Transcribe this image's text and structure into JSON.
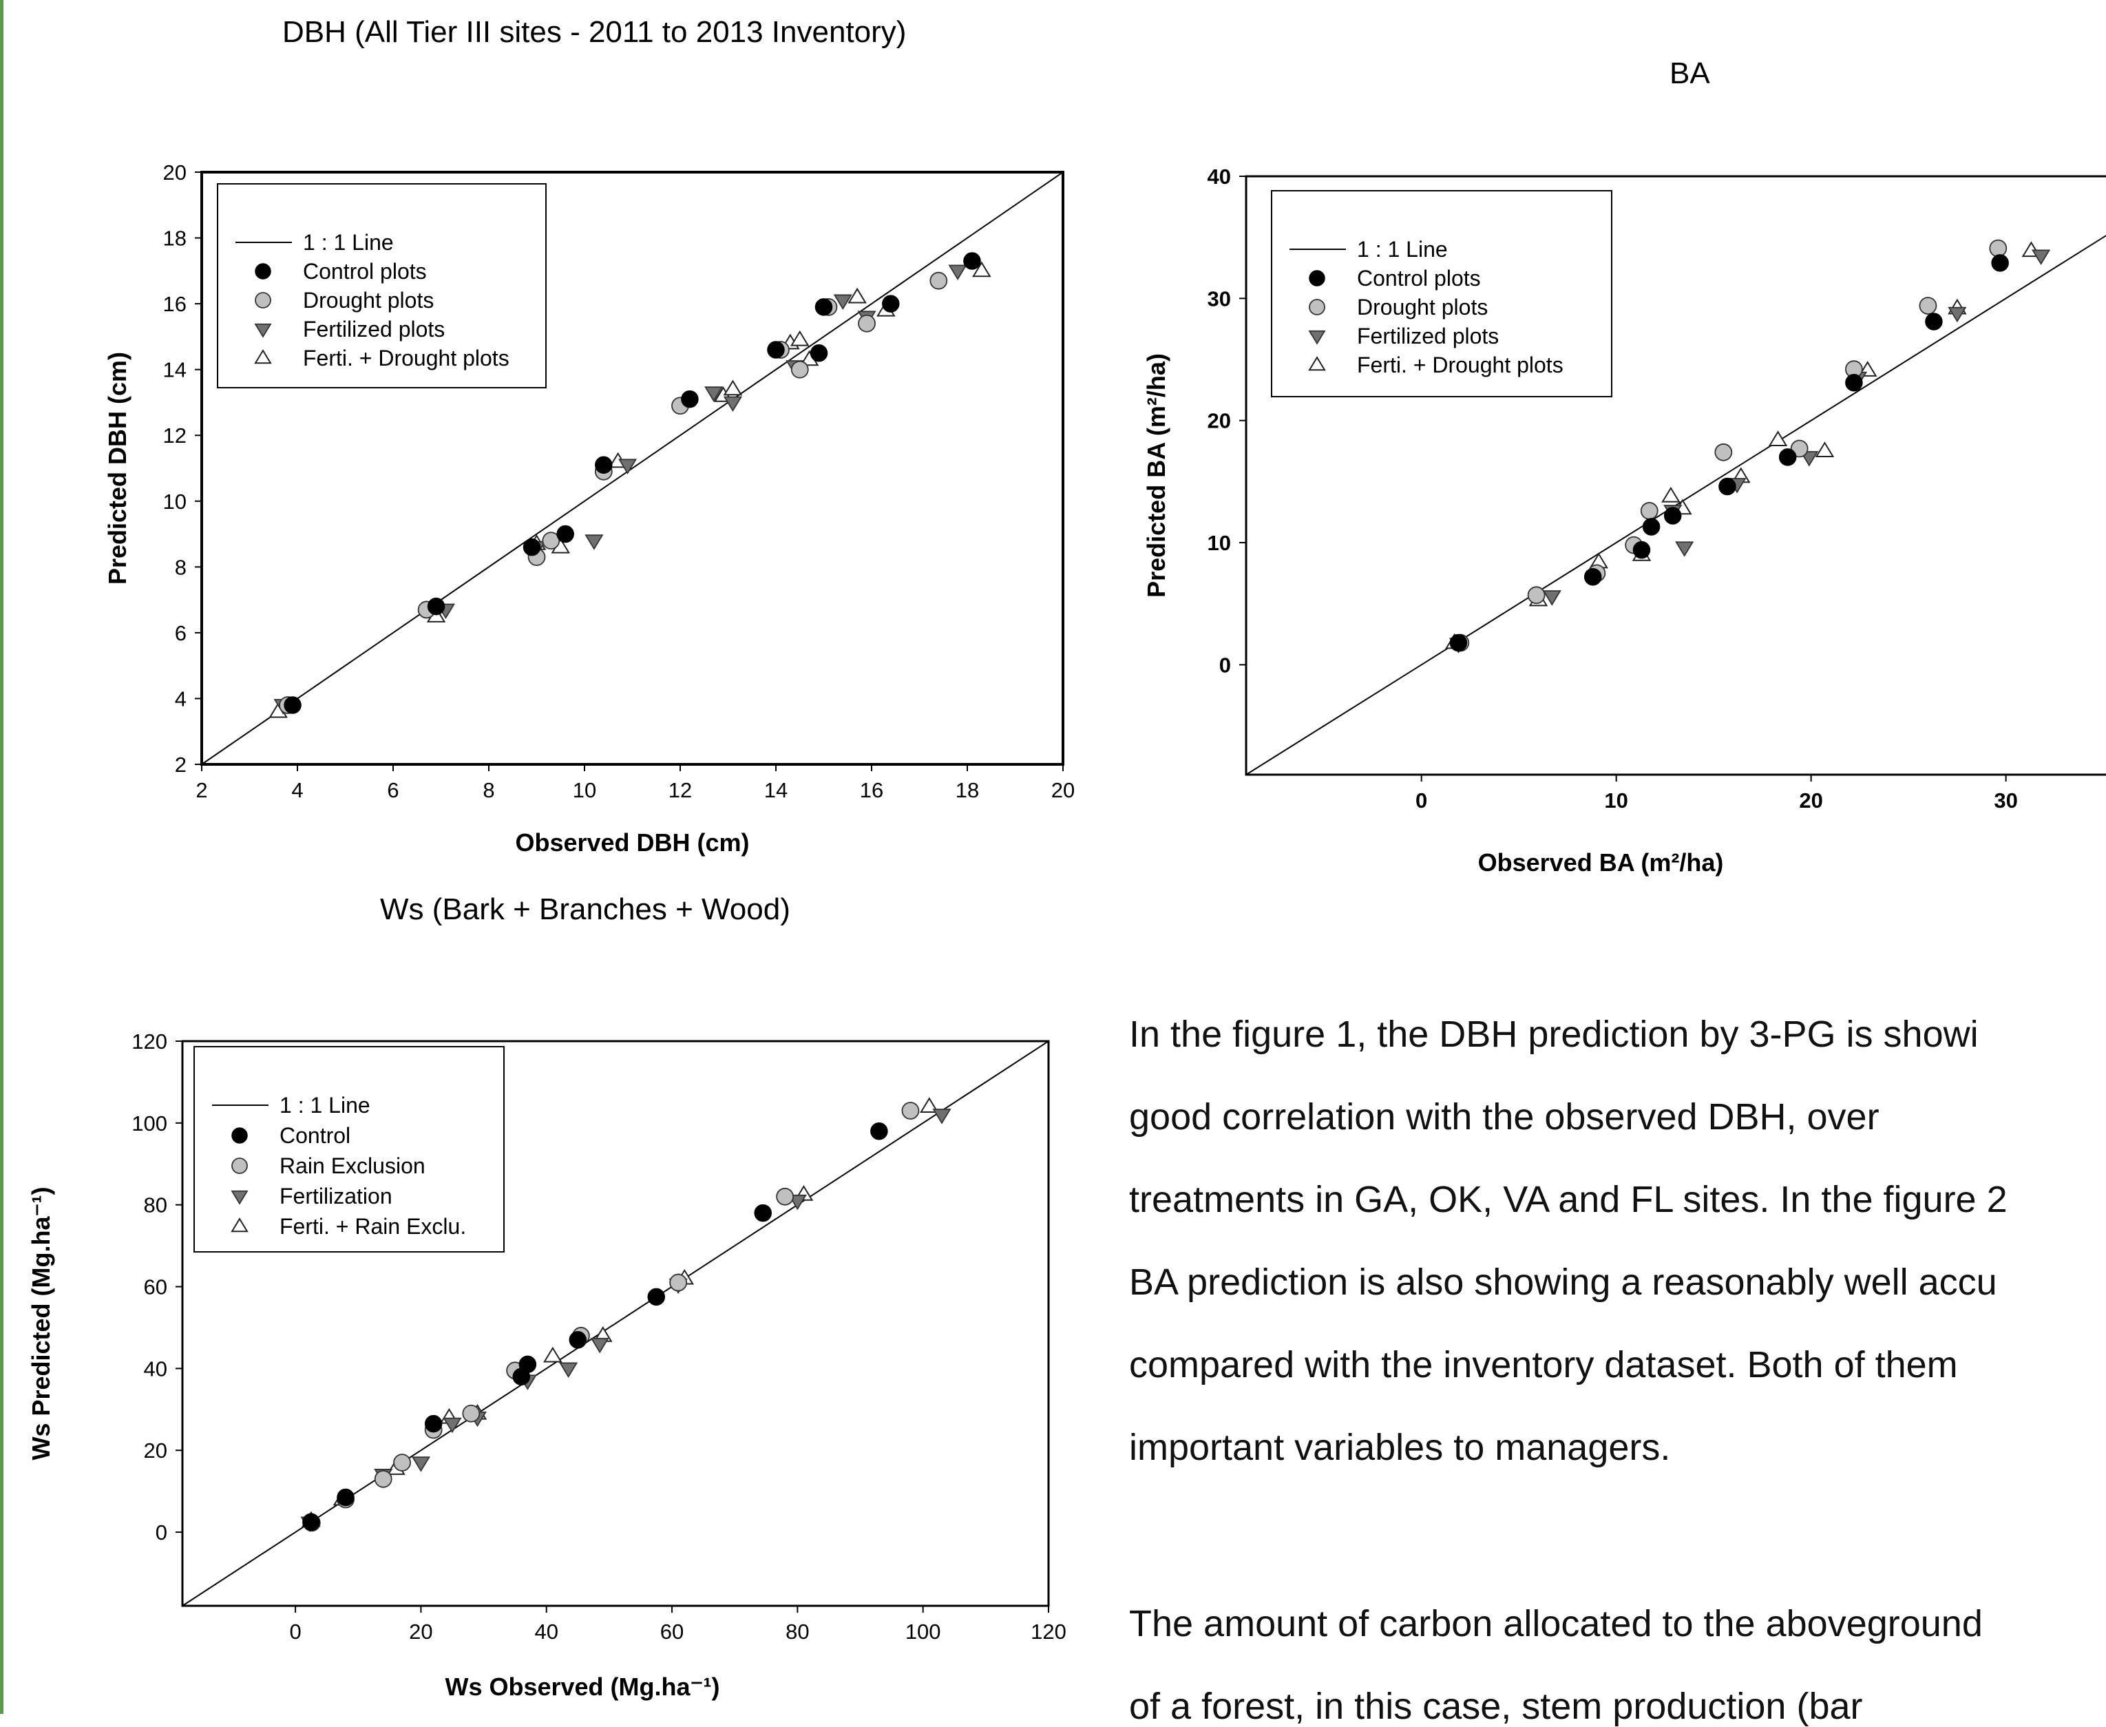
{
  "chart_data": [
    {
      "id": "dbh",
      "type": "scatter",
      "title": "DBH (All Tier III sites - 2011 to 2013 Inventory)",
      "xlabel": "Observed DBH (cm)",
      "ylabel": "Predicted DBH (cm)",
      "xlim": [
        2,
        20
      ],
      "ylim": [
        2,
        20
      ],
      "xticks": [
        "2",
        "4",
        "6",
        "8",
        "10",
        "12",
        "14",
        "16",
        "18",
        "20"
      ],
      "yticks": [
        "2",
        "4",
        "6",
        "8",
        "10",
        "12",
        "14",
        "16",
        "18",
        "20"
      ],
      "grid": false,
      "legend_position": "top-left",
      "legend": [
        "1 : 1 Line",
        "Control plots",
        "Drought plots",
        "Fertilized plots",
        "Ferti. + Drought plots"
      ],
      "series": [
        {
          "name": "Control plots",
          "marker": "filled-circle",
          "points": [
            [
              3.9,
              3.8
            ],
            [
              6.9,
              6.8
            ],
            [
              8.9,
              8.6
            ],
            [
              9.6,
              9.0
            ],
            [
              10.4,
              11.1
            ],
            [
              12.2,
              13.1
            ],
            [
              14.0,
              14.6
            ],
            [
              14.9,
              14.5
            ],
            [
              15.0,
              15.9
            ],
            [
              16.4,
              16.0
            ],
            [
              18.1,
              17.3
            ]
          ]
        },
        {
          "name": "Drought plots",
          "marker": "gray-circle",
          "points": [
            [
              3.8,
              3.8
            ],
            [
              6.7,
              6.7
            ],
            [
              9.0,
              8.3
            ],
            [
              9.3,
              8.8
            ],
            [
              10.4,
              10.9
            ],
            [
              12.0,
              12.9
            ],
            [
              14.1,
              14.6
            ],
            [
              14.5,
              14.0
            ],
            [
              15.1,
              15.9
            ],
            [
              15.9,
              15.4
            ],
            [
              17.4,
              16.7
            ]
          ]
        },
        {
          "name": "Fertilized plots",
          "marker": "triangle-down",
          "points": [
            [
              3.7,
              3.8
            ],
            [
              7.1,
              6.7
            ],
            [
              9.0,
              8.6
            ],
            [
              10.2,
              8.8
            ],
            [
              10.9,
              11.1
            ],
            [
              12.7,
              13.3
            ],
            [
              13.1,
              13.0
            ],
            [
              14.4,
              14.1
            ],
            [
              15.4,
              16.1
            ],
            [
              15.9,
              15.6
            ],
            [
              17.8,
              17.0
            ]
          ]
        },
        {
          "name": "Ferti. + Drought plots",
          "marker": "open-triangle",
          "points": [
            [
              3.6,
              3.6
            ],
            [
              6.9,
              6.5
            ],
            [
              9.0,
              8.7
            ],
            [
              9.5,
              8.6
            ],
            [
              10.7,
              11.2
            ],
            [
              12.9,
              13.2
            ],
            [
              13.1,
              13.4
            ],
            [
              14.3,
              14.8
            ],
            [
              14.5,
              14.9
            ],
            [
              14.7,
              14.3
            ],
            [
              15.7,
              16.2
            ],
            [
              16.3,
              15.8
            ],
            [
              18.3,
              17.0
            ]
          ]
        }
      ]
    },
    {
      "id": "ba",
      "type": "scatter",
      "title": "BA",
      "xlabel": "Observed BA (m²/ha)",
      "ylabel": "Predicted BA (m²/ha)",
      "xlim": [
        -9,
        38
      ],
      "ylim": [
        -9,
        40
      ],
      "xticks": [
        "0",
        "10",
        "20",
        "30"
      ],
      "yticks": [
        "0",
        "10",
        "20",
        "30",
        "40"
      ],
      "grid": false,
      "legend_position": "top-left",
      "legend": [
        "1 : 1 Line",
        "Control plots",
        "Drought plots",
        "Fertilized plots",
        "Ferti. + Drought plots"
      ],
      "series": [
        {
          "name": "Control plots",
          "marker": "filled-circle",
          "points": [
            [
              1.9,
              1.8
            ],
            [
              8.8,
              7.2
            ],
            [
              11.3,
              9.4
            ],
            [
              11.8,
              11.3
            ],
            [
              12.9,
              12.2
            ],
            [
              15.7,
              14.6
            ],
            [
              18.8,
              17.0
            ],
            [
              22.2,
              23.1
            ],
            [
              26.3,
              28.1
            ],
            [
              29.7,
              32.9
            ]
          ]
        },
        {
          "name": "Drought plots",
          "marker": "gray-circle",
          "points": [
            [
              2.0,
              1.8
            ],
            [
              5.9,
              5.7
            ],
            [
              9.0,
              7.5
            ],
            [
              10.9,
              9.8
            ],
            [
              11.7,
              12.6
            ],
            [
              15.5,
              17.4
            ],
            [
              19.4,
              17.7
            ],
            [
              22.2,
              24.2
            ],
            [
              26.0,
              29.4
            ],
            [
              29.6,
              34.1
            ]
          ]
        },
        {
          "name": "Fertilized plots",
          "marker": "triangle-down",
          "points": [
            [
              1.9,
              1.7
            ],
            [
              6.7,
              5.6
            ],
            [
              12.9,
              12.6
            ],
            [
              13.5,
              9.6
            ],
            [
              16.2,
              14.8
            ],
            [
              19.9,
              17.0
            ],
            [
              22.4,
              23.5
            ],
            [
              27.5,
              28.8
            ],
            [
              31.8,
              33.5
            ]
          ]
        },
        {
          "name": "Ferti. + Drought plots",
          "marker": "open-triangle",
          "points": [
            [
              1.7,
              1.8
            ],
            [
              6.0,
              5.3
            ],
            [
              9.1,
              8.4
            ],
            [
              11.3,
              9.0
            ],
            [
              12.8,
              13.8
            ],
            [
              13.4,
              12.8
            ],
            [
              16.4,
              15.4
            ],
            [
              18.3,
              18.4
            ],
            [
              20.7,
              17.5
            ],
            [
              22.9,
              24.1
            ],
            [
              27.5,
              29.2
            ],
            [
              31.3,
              33.9
            ]
          ]
        }
      ]
    },
    {
      "id": "ws",
      "type": "scatter",
      "title": "Ws (Bark + Branches + Wood)",
      "xlabel": "Ws  Observed (Mg.ha⁻¹)",
      "ylabel": "Ws Predicted  (Mg.ha⁻¹)",
      "xlim": [
        -18,
        120
      ],
      "ylim": [
        -18,
        120
      ],
      "xticks": [
        "0",
        "20",
        "40",
        "60",
        "80",
        "100",
        "120"
      ],
      "yticks": [
        "0",
        "20",
        "40",
        "60",
        "80",
        "100",
        "120"
      ],
      "grid": false,
      "legend_position": "top-left",
      "legend": [
        "1 : 1 Line",
        "Control",
        "Rain Exclusion",
        "Fertilization",
        "Ferti. + Rain Exclu."
      ],
      "series": [
        {
          "name": "Control",
          "marker": "filled-circle",
          "points": [
            [
              2.5,
              2.5
            ],
            [
              8,
              8.5
            ],
            [
              22,
              26.5
            ],
            [
              36,
              38
            ],
            [
              37,
              41
            ],
            [
              45,
              47
            ],
            [
              57.5,
              57.5
            ],
            [
              74.5,
              78
            ],
            [
              93,
              98
            ]
          ]
        },
        {
          "name": "Rain Exclusion",
          "marker": "gray-circle",
          "points": [
            [
              2.6,
              2.3
            ],
            [
              8,
              8
            ],
            [
              14,
              13
            ],
            [
              17,
              17
            ],
            [
              22,
              25
            ],
            [
              28,
              29
            ],
            [
              35,
              39.5
            ],
            [
              45.5,
              48
            ],
            [
              61,
              61
            ],
            [
              78,
              82
            ],
            [
              98,
              103
            ]
          ]
        },
        {
          "name": "Fertilization",
          "marker": "triangle-down",
          "points": [
            [
              2.3,
              2.3
            ],
            [
              14,
              14
            ],
            [
              20,
              17
            ],
            [
              25,
              26.5
            ],
            [
              29,
              28
            ],
            [
              37,
              37
            ],
            [
              43.5,
              40
            ],
            [
              48.5,
              46
            ],
            [
              61,
              60.5
            ],
            [
              80,
              81
            ],
            [
              103,
              102
            ]
          ]
        },
        {
          "name": "Ferti. + Rain Exclu.",
          "marker": "open-triangle",
          "points": [
            [
              2.5,
              2.8
            ],
            [
              7.5,
              8
            ],
            [
              16,
              15.5
            ],
            [
              24.5,
              28
            ],
            [
              29,
              29
            ],
            [
              41,
              43
            ],
            [
              49,
              48
            ],
            [
              62,
              62
            ],
            [
              81,
              82.5
            ],
            [
              101,
              104
            ]
          ]
        }
      ]
    }
  ],
  "body_text": {
    "paragraph1": [
      "In the figure 1, the DBH prediction by 3-PG is showi",
      "good  correlation  with  the  observed  DBH,  over",
      "treatments in GA, OK, VA and FL sites. In the figure 2",
      "BA prediction is also showing a reasonably well accu",
      "compared with the inventory dataset. Both of them",
      "important variables to managers."
    ],
    "paragraph2": [
      "The amount of carbon allocated to the aboveground",
      "of  a  forest,  in  this  case,  stem  production  (bar"
    ]
  },
  "colors": {
    "control": "#000000",
    "drought_fill": "#c0c0c0",
    "fertilized_fill": "#707070",
    "open_fill": "#ffffff",
    "border_accent": "#5b9a4b"
  }
}
